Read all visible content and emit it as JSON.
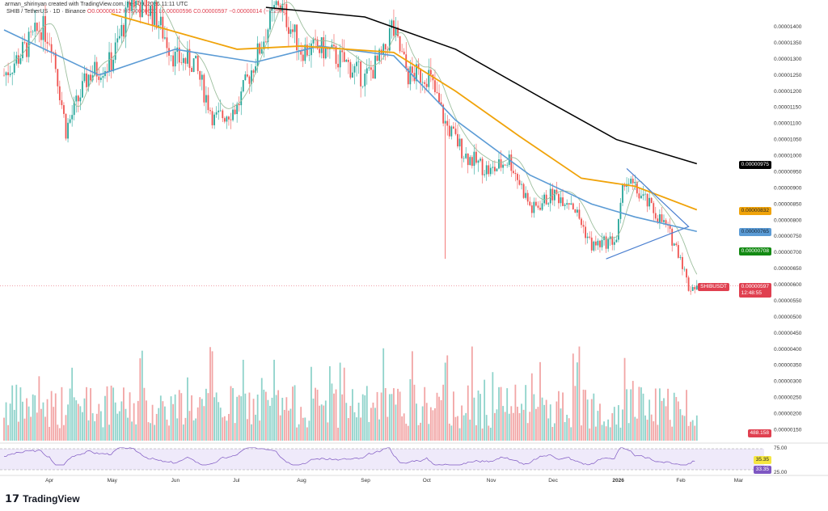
{
  "header": {
    "credit": "arman_shirinyan created with TradingView.com, Feb 09, 2026 11:11 UTC",
    "symbol": "SHIB / TetherUS · 1D · Binance",
    "open": "O0.00000612",
    "high": "H0.00000620",
    "low": "L0.00000596",
    "close": "C0.00000597",
    "change": "−0.00000014 (−2.29%)"
  },
  "colors": {
    "up": "#26a69a",
    "down": "#ef5350",
    "ma200": "#000000",
    "ma_orange": "#f0a30a",
    "ma_blue": "#5b9bd5",
    "ma_green": "#9dbf9e",
    "rsi": "#7e57c2",
    "triangle": "#4a7fd0"
  },
  "chart_data": {
    "type": "candlestick",
    "yunit": "USDT",
    "price_ticks": [
      "0.00001400",
      "0.00001350",
      "0.00001300",
      "0.00001250",
      "0.00001200",
      "0.00001150",
      "0.00001100",
      "0.00001050",
      "0.00001000",
      "0.00000950",
      "0.00000900",
      "0.00000850",
      "0.00000800",
      "0.00000750",
      "0.00000700",
      "0.00000650",
      "0.00000600",
      "0.00000550",
      "0.00000500",
      "0.00000450",
      "0.00000400",
      "0.00000350",
      "0.00000300",
      "0.00000250",
      "0.00000200",
      "0.00000150"
    ],
    "x_ticks": [
      "Apr",
      "May",
      "Jun",
      "Jul",
      "Aug",
      "Sep",
      "Oct",
      "Nov",
      "Dec",
      "2026",
      "Feb",
      "Mar"
    ],
    "close_keypoints_e8": [
      [
        "2025-03-10",
        1250
      ],
      [
        "2025-03-20",
        1330
      ],
      [
        "2025-03-28",
        1400
      ],
      [
        "2025-04-02",
        1360
      ],
      [
        "2025-04-09",
        1080
      ],
      [
        "2025-04-20",
        1250
      ],
      [
        "2025-05-01",
        1290
      ],
      [
        "2025-05-11",
        1480
      ],
      [
        "2025-05-22",
        1440
      ],
      [
        "2025-06-01",
        1300
      ],
      [
        "2025-06-10",
        1290
      ],
      [
        "2025-06-20",
        1110
      ],
      [
        "2025-07-01",
        1150
      ],
      [
        "2025-07-10",
        1300
      ],
      [
        "2025-07-21",
        1480
      ],
      [
        "2025-08-01",
        1330
      ],
      [
        "2025-08-12",
        1330
      ],
      [
        "2025-08-22",
        1290
      ],
      [
        "2025-09-01",
        1240
      ],
      [
        "2025-09-10",
        1310
      ],
      [
        "2025-09-14",
        1400
      ],
      [
        "2025-09-22",
        1250
      ],
      [
        "2025-10-02",
        1250
      ],
      [
        "2025-10-10",
        1100
      ],
      [
        "2025-10-20",
        1000
      ],
      [
        "2025-11-01",
        950
      ],
      [
        "2025-11-10",
        990
      ],
      [
        "2025-11-21",
        830
      ],
      [
        "2025-12-01",
        880
      ],
      [
        "2025-12-10",
        860
      ],
      [
        "2025-12-20",
        720
      ],
      [
        "2026-01-01",
        740
      ],
      [
        "2026-01-05",
        930
      ],
      [
        "2026-01-15",
        860
      ],
      [
        "2026-01-25",
        780
      ],
      [
        "2026-02-01",
        690
      ],
      [
        "2026-02-05",
        590
      ],
      [
        "2026-02-09",
        597
      ]
    ],
    "ma200_keypoints_e8": [
      [
        "2025-07-15",
        1460
      ],
      [
        "2025-09-01",
        1430
      ],
      [
        "2025-10-15",
        1330
      ],
      [
        "2025-12-01",
        1160
      ],
      [
        "2026-01-01",
        1050
      ],
      [
        "2026-02-09",
        975
      ]
    ],
    "ma_orange_keypoints_e8": [
      [
        "2025-05-01",
        1440
      ],
      [
        "2025-07-01",
        1330
      ],
      [
        "2025-08-01",
        1340
      ],
      [
        "2025-09-15",
        1320
      ],
      [
        "2025-10-15",
        1200
      ],
      [
        "2025-11-15",
        1060
      ],
      [
        "2025-12-15",
        930
      ],
      [
        "2026-01-10",
        905
      ],
      [
        "2026-02-09",
        832
      ]
    ],
    "ma_blue_keypoints_e8": [
      [
        "2025-03-10",
        1390
      ],
      [
        "2025-04-25",
        1250
      ],
      [
        "2025-06-01",
        1330
      ],
      [
        "2025-07-10",
        1290
      ],
      [
        "2025-08-10",
        1340
      ],
      [
        "2025-09-15",
        1310
      ],
      [
        "2025-10-15",
        1110
      ],
      [
        "2025-11-20",
        940
      ],
      [
        "2025-12-20",
        850
      ],
      [
        "2026-01-10",
        810
      ],
      [
        "2026-02-09",
        765
      ]
    ],
    "volume_last": "488.158",
    "labels": {
      "ma200": "0.00000975",
      "ma_orange": "0.00000832",
      "ma_blue": "0.00000765",
      "ma_green": "0.00000708",
      "symbol": "SHIBUSDT",
      "price": "0.00000597",
      "countdown": "12:48:55"
    },
    "rsi": {
      "levels": [
        "75.00",
        "25.00"
      ],
      "rsi_value": "33.35",
      "ma_value": "35.35"
    }
  },
  "logo": "TradingView"
}
